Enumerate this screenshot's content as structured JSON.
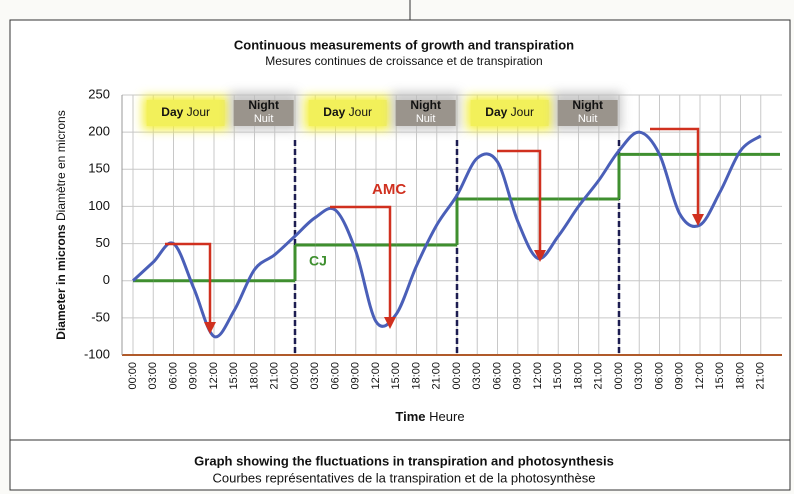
{
  "chart_data": {
    "type": "line",
    "title": "Continuous measurements of growth and transpiration",
    "subtitle": "Mesures continues de croissance et de transpiration",
    "y_label": "Diameter in microns",
    "y_label_sub": "Diamètre en microns",
    "x_label": "Time",
    "x_label_sub": "Heure",
    "caption": "Graph showing the fluctuations in transpiration and photosynthesis",
    "caption_sub": "Courbes représentatives de la transpiration et de la photosynthèse",
    "annotations": [
      "AMC",
      "CJ"
    ],
    "periods": [
      {
        "label": "Day",
        "sublabel": "Jour"
      },
      {
        "label": "Night",
        "sublabel": "Nuit"
      },
      {
        "label": "Day",
        "sublabel": "Jour"
      },
      {
        "label": "Night",
        "sublabel": "Nuit"
      },
      {
        "label": "Day",
        "sublabel": "Jour"
      },
      {
        "label": "Night",
        "sublabel": "Nuit"
      }
    ],
    "categories": [
      "00:00",
      "03:00",
      "06:00",
      "09:00",
      "12:00",
      "15:00",
      "18:00",
      "21:00",
      "00:00",
      "03:00",
      "06:00",
      "09:00",
      "12:00",
      "15:00",
      "18:00",
      "21:00",
      "00:00",
      "03:00",
      "06:00",
      "09:00",
      "12:00",
      "15:00",
      "18:00",
      "21:00",
      "00:00",
      "03:00",
      "06:00",
      "09:00",
      "12:00",
      "15:00",
      "18:00",
      "21:00"
    ],
    "series": [
      {
        "color": "#4a5fb8",
        "values": [
          0,
          25,
          50,
          -10,
          -75,
          -40,
          15,
          35,
          60,
          85,
          95,
          40,
          -55,
          -45,
          20,
          75,
          115,
          165,
          160,
          80,
          30,
          60,
          100,
          135,
          175,
          200,
          170,
          90,
          75,
          120,
          175,
          195
        ]
      },
      {
        "color": "#3f8f2f",
        "values": [
          0,
          0,
          0,
          0,
          0,
          0,
          0,
          0,
          48,
          48,
          48,
          48,
          48,
          48,
          48,
          48,
          110,
          110,
          110,
          110,
          110,
          110,
          110,
          110,
          170,
          170,
          170,
          170,
          170,
          170,
          170,
          170
        ]
      }
    ],
    "ylim": [
      -100,
      250
    ],
    "yticks": [
      -100,
      -50,
      0,
      50,
      100,
      150,
      200,
      250
    ],
    "grid": true
  }
}
